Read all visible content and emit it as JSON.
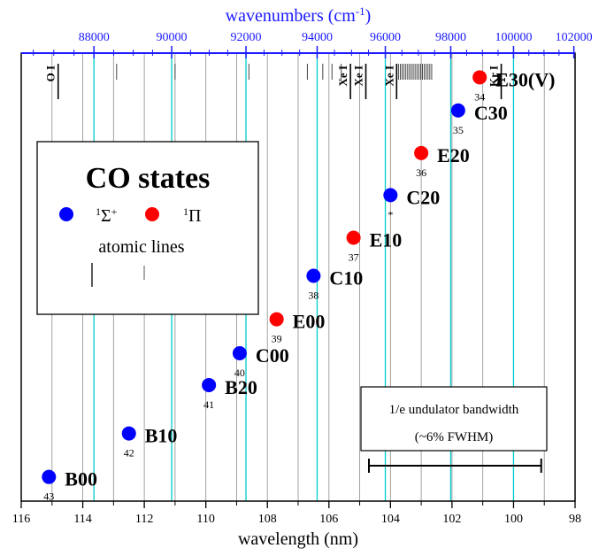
{
  "chart_data": {
    "type": "scatter",
    "xlabel": "wavelength (nm)",
    "top_xlabel": "wavenumbers (cm",
    "top_xlabel_sup": "-1",
    "top_xlabel_close": ")",
    "xlim": [
      116,
      98
    ],
    "x_ticks": [
      116,
      114,
      112,
      110,
      108,
      106,
      104,
      102,
      100,
      98
    ],
    "top_ticks": [
      88000,
      90000,
      92000,
      94000,
      96000,
      98000,
      100000,
      102000
    ],
    "top_tick_labels": [
      "88000",
      "90000",
      "92000",
      "94000",
      "96000",
      "98000",
      "100000",
      "102000"
    ],
    "ylim": [
      0,
      1
    ],
    "states": [
      {
        "name": "B00",
        "num": "43",
        "x": 115.1,
        "y": 0.054,
        "sym": "sigma"
      },
      {
        "name": "B10",
        "num": "42",
        "x": 112.5,
        "y": 0.151,
        "sym": "sigma"
      },
      {
        "name": "B20",
        "num": "41",
        "x": 109.9,
        "y": 0.259,
        "sym": "sigma"
      },
      {
        "name": "C00",
        "num": "40",
        "x": 108.9,
        "y": 0.33,
        "sym": "sigma"
      },
      {
        "name": "E00",
        "num": "39",
        "x": 107.7,
        "y": 0.406,
        "sym": "pi"
      },
      {
        "name": "C10",
        "num": "38",
        "x": 106.5,
        "y": 0.503,
        "sym": "sigma"
      },
      {
        "name": "E10",
        "num": "37",
        "x": 105.2,
        "y": 0.588,
        "sym": "pi"
      },
      {
        "name": "C20",
        "num": "*",
        "x": 104.0,
        "y": 0.683,
        "sym": "sigma"
      },
      {
        "name": "E20",
        "num": "36",
        "x": 103.0,
        "y": 0.777,
        "sym": "pi"
      },
      {
        "name": "C30",
        "num": "35",
        "x": 101.8,
        "y": 0.872,
        "sym": "sigma"
      },
      {
        "name": "E30(V)",
        "num": "34",
        "x": 101.1,
        "y": 0.946,
        "sym": "pi"
      }
    ],
    "legend": {
      "title": "CO states",
      "sigma_label": "Σ",
      "sigma_sup_left": "1",
      "sigma_sup_right": "+",
      "pi_label": "Π",
      "pi_sup_left": "1",
      "lines_label": "atomic lines"
    },
    "atomic_line_labels": [
      {
        "text": "O I",
        "x": 114.8
      },
      {
        "text": "Xe I",
        "x": 105.3
      },
      {
        "text": "Xe I",
        "x": 104.8
      },
      {
        "text": "Xe I",
        "x": 103.8
      },
      {
        "text": "Kr I",
        "x": 100.4
      }
    ],
    "bandwidth": {
      "line1": "1/e undulator bandwidth",
      "line2": "(~6% FWHM)",
      "x_start": 104.7,
      "x_end": 99.1
    },
    "colors": {
      "sigma": "#0000ff",
      "pi": "#ff0000",
      "top_axis": "#1a1aff",
      "cyan_line": "#00cccc",
      "gray_line": "#999999"
    }
  }
}
